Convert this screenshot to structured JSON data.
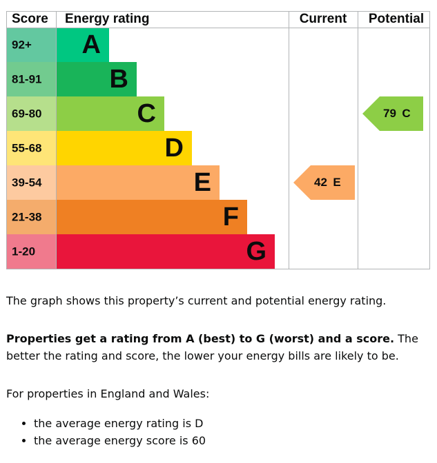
{
  "header": {
    "score": "Score",
    "energy_rating": "Energy rating",
    "current": "Current",
    "potential": "Potential"
  },
  "bands": [
    {
      "range": "92+",
      "letter": "A",
      "color": "#00c781",
      "light": "#63c8a0"
    },
    {
      "range": "81-91",
      "letter": "B",
      "color": "#19b459",
      "light": "#72cb8f"
    },
    {
      "range": "69-80",
      "letter": "C",
      "color": "#8dce46",
      "light": "#b6df8c"
    },
    {
      "range": "55-68",
      "letter": "D",
      "color": "#ffd500",
      "light": "#fee577"
    },
    {
      "range": "39-54",
      "letter": "E",
      "color": "#fcaa65",
      "light": "#fdcaa0"
    },
    {
      "range": "21-38",
      "letter": "F",
      "color": "#ef8023",
      "light": "#f4ac6c"
    },
    {
      "range": "1-20",
      "letter": "G",
      "color": "#e9153b",
      "light": "#f07a8d"
    }
  ],
  "current": {
    "score": 42,
    "rating": "E"
  },
  "potential": {
    "score": 79,
    "rating": "C"
  },
  "text": {
    "intro": "The graph shows this property’s current and potential energy rating.",
    "bold": "Properties get a rating from A (best) to G (worst) and a score.",
    "rest": "The better the rating and score, the lower your energy bills are likely to be.",
    "regional": "For properties in England and Wales:",
    "bullets": [
      "the average energy rating is D",
      "the average energy score is 60"
    ]
  }
}
